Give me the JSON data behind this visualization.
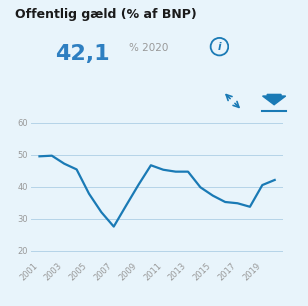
{
  "title": "Offentlig gæld (% af BNP)",
  "subtitle_value": "42,1",
  "subtitle_unit": "% 2020",
  "bg_color": "#e8f4fb",
  "line_color": "#1a7ab5",
  "grid_color": "#b5d4e8",
  "title_color": "#1a1a1a",
  "subtitle_value_color": "#2e7fc1",
  "subtitle_unit_color": "#999999",
  "tick_color": "#999999",
  "years": [
    2001,
    2002,
    2003,
    2004,
    2005,
    2006,
    2007,
    2008,
    2009,
    2010,
    2011,
    2012,
    2013,
    2014,
    2015,
    2016,
    2017,
    2018,
    2019,
    2020
  ],
  "values": [
    49.5,
    49.7,
    47.2,
    45.4,
    37.8,
    32.0,
    27.5,
    34.1,
    40.6,
    46.7,
    45.3,
    44.7,
    44.7,
    39.8,
    37.2,
    35.2,
    34.8,
    33.7,
    40.5,
    42.1
  ],
  "ylim": [
    17,
    63
  ],
  "yticks": [
    20,
    30,
    40,
    50,
    60
  ],
  "xtick_years": [
    2001,
    2003,
    2005,
    2007,
    2009,
    2011,
    2013,
    2015,
    2017,
    2019
  ]
}
